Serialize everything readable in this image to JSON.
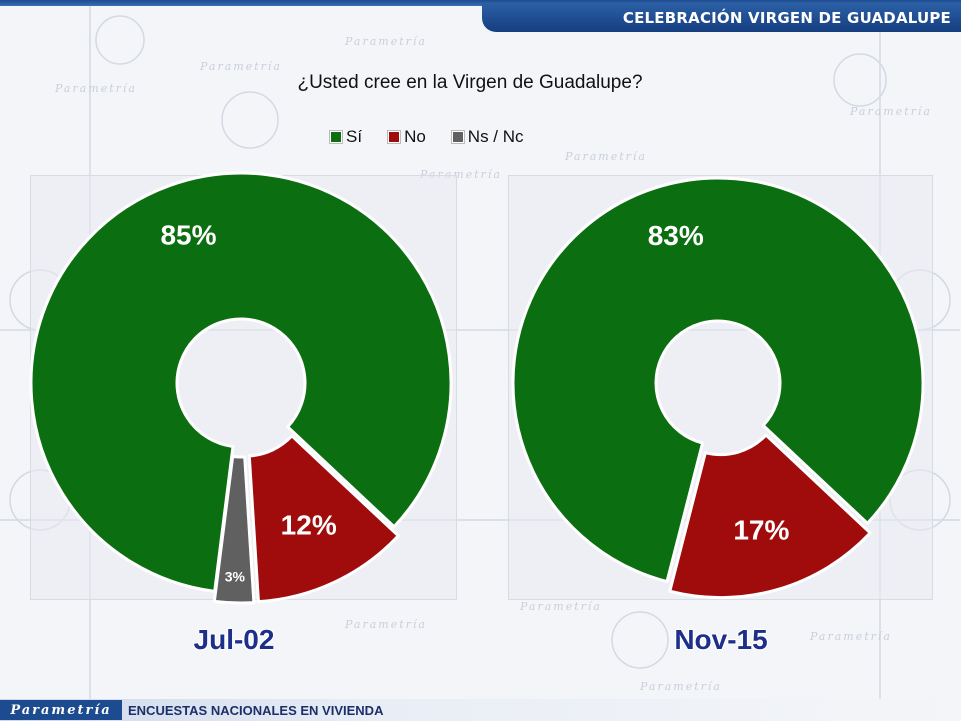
{
  "header": {
    "title": "CELEBRACIÓN VIRGEN DE GUADALUPE"
  },
  "footer": {
    "logo": "Parametría",
    "caption": "ENCUESTAS NACIONALES EN VIVIENDA"
  },
  "watermark": {
    "text": "Parametría"
  },
  "chart_data": {
    "type": "pie",
    "title": "¿Usted cree en la Virgen de Guadalupe?",
    "legend": [
      {
        "name": "Sí",
        "color": "#0b6e10"
      },
      {
        "name": "No",
        "color": "#a00c0c"
      },
      {
        "name": "Ns / Nc",
        "color": "#606060"
      }
    ],
    "legend_position": "top",
    "charts": [
      {
        "label": "Jul-02",
        "slices": [
          {
            "name": "Sí",
            "value": 85,
            "label": "85%"
          },
          {
            "name": "No",
            "value": 12,
            "label": "12%"
          },
          {
            "name": "Ns / Nc",
            "value": 3,
            "label": "3%"
          }
        ]
      },
      {
        "label": "Nov-15",
        "slices": [
          {
            "name": "Sí",
            "value": 83,
            "label": "83%"
          },
          {
            "name": "No",
            "value": 17,
            "label": "17%"
          }
        ]
      }
    ]
  }
}
